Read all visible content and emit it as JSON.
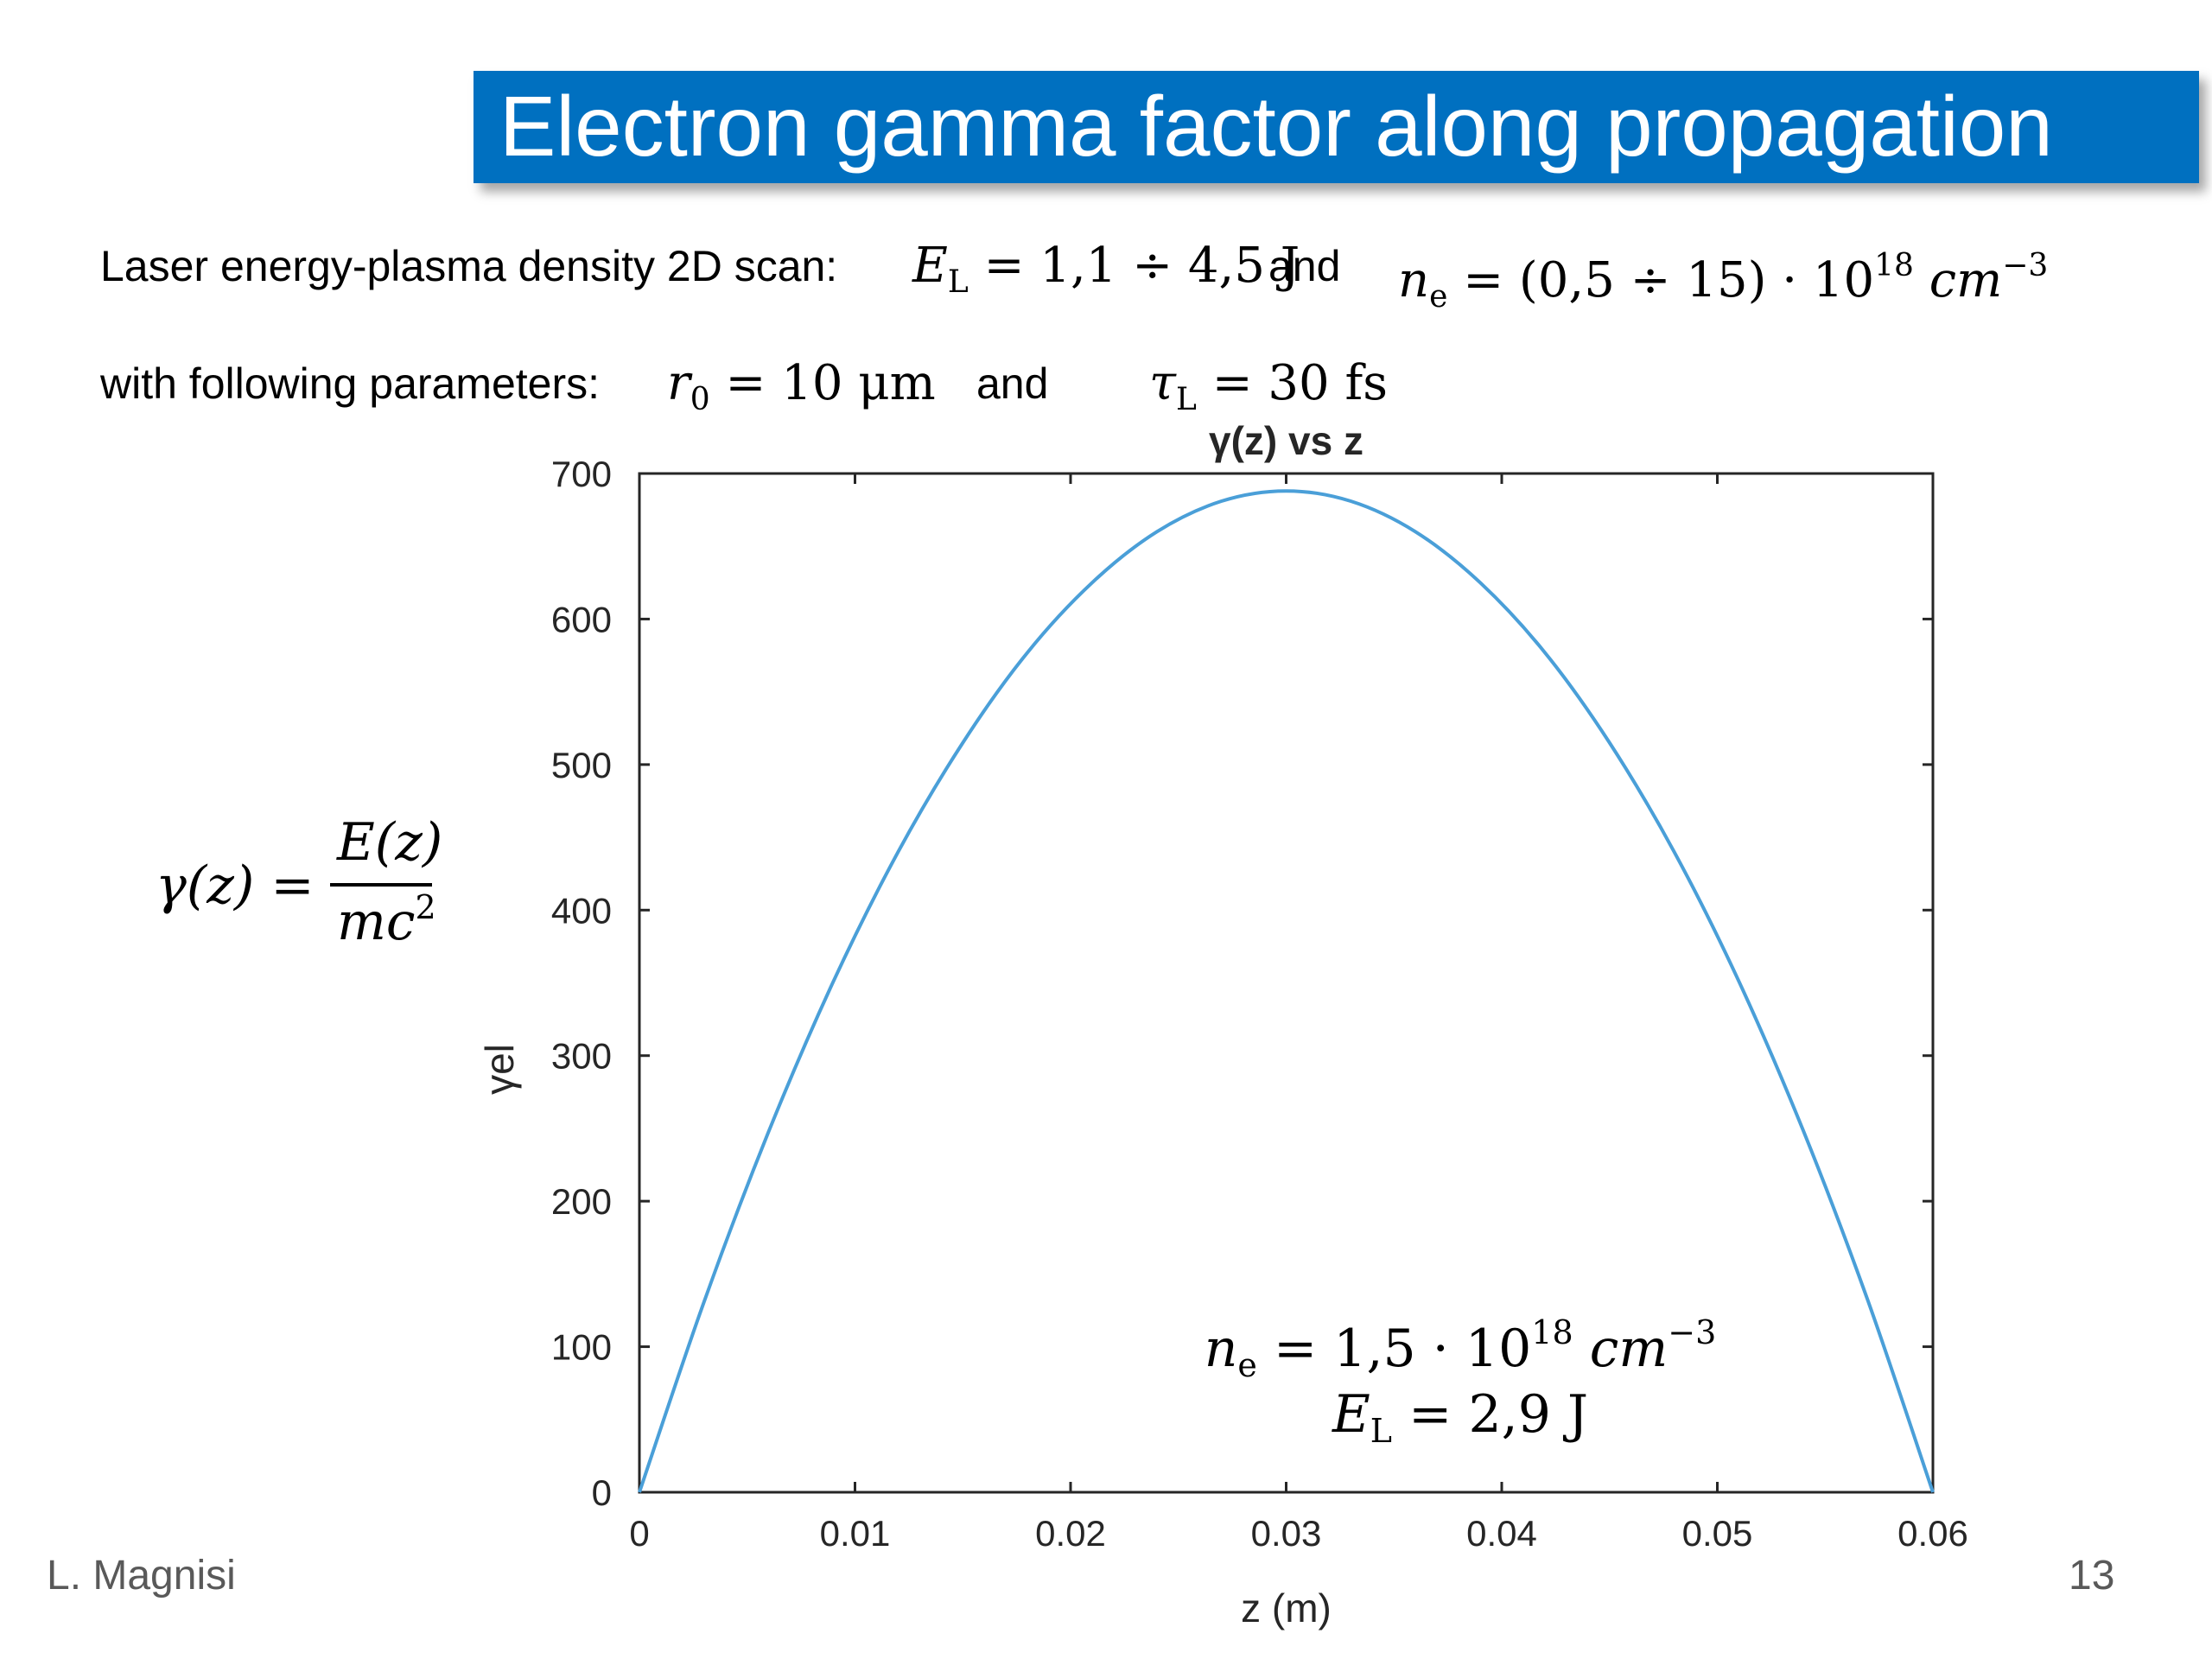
{
  "slide": {
    "title": "Electron gamma factor along propagation",
    "line1": {
      "label": "Laser energy-plasma density 2D scan:",
      "el_symbol": "E",
      "el_sub": "L",
      "el_value": "= 1,1 ÷ 4,5 J",
      "and1": "and",
      "ne_symbol": "n",
      "ne_sub": "e",
      "ne_value": "= (0,5 ÷ 15) · 10",
      "ne_exp": "18",
      "ne_unit": "cm",
      "ne_unit_exp": "−3"
    },
    "line2": {
      "label": "with following parameters:",
      "r_symbol": "r",
      "r_sub": "0",
      "r_value": "= 10 μm",
      "and2": "and",
      "tau_symbol": "τ",
      "tau_sub": "L",
      "tau_value": "= 30 fs"
    },
    "gamma_def": {
      "lhs": "γ(z) =",
      "numerator": "E(z)",
      "denominator": "mc",
      "denominator_exp": "2"
    },
    "annotation": {
      "ne_symbol": "n",
      "ne_sub": "e",
      "ne_value": "= 1,5 · 10",
      "ne_exp": "18",
      "ne_unit": "cm",
      "ne_unit_exp": "−3",
      "el_symbol": "E",
      "el_sub": "L",
      "el_value": "= 2,9 J"
    },
    "footer": {
      "author": "L. Magnisi",
      "page_number": "13"
    }
  },
  "chart_data": {
    "type": "line",
    "title": "γ(z) vs z",
    "xlabel": "z (m)",
    "ylabel": "γel",
    "xlim": [
      0,
      0.06
    ],
    "ylim": [
      0,
      700
    ],
    "x_ticks": [
      "0",
      "0.01",
      "0.02",
      "0.03",
      "0.04",
      "0.05",
      "0.06"
    ],
    "y_ticks": [
      "0",
      "100",
      "200",
      "300",
      "400",
      "500",
      "600",
      "700"
    ],
    "grid": false,
    "line_color": "#4a9fd8",
    "series": [
      {
        "x": [
          0,
          0.003,
          0.006,
          0.009,
          0.012,
          0.015,
          0.018,
          0.021,
          0.024,
          0.027,
          0.03,
          0.033,
          0.036,
          0.039,
          0.042,
          0.045,
          0.048,
          0.051,
          0.054,
          0.057,
          0.06
        ],
        "values": [
          0,
          131,
          248,
          351,
          440,
          515,
          577,
          625,
          660,
          681,
          688,
          681,
          660,
          625,
          577,
          515,
          440,
          351,
          248,
          131,
          0
        ]
      }
    ]
  }
}
